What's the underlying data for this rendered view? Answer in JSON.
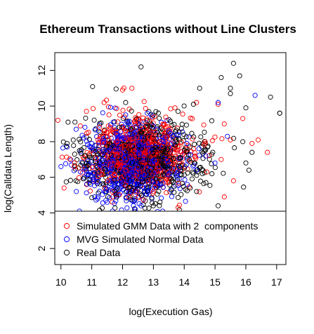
{
  "chart_data": {
    "type": "scatter",
    "title": "Ethereum Transactions without Line Clusters",
    "xlabel": "log(Execution Gas)",
    "ylabel": "log(Calldata Length)",
    "xlim": [
      9.8,
      17.3
    ],
    "ylim": [
      1.1,
      13.0
    ],
    "x_ticks": [
      10,
      11,
      12,
      13,
      14,
      15,
      16,
      17
    ],
    "y_ticks": [
      2,
      4,
      6,
      8,
      10,
      12
    ],
    "grid": false,
    "legend_position": "bottom-left",
    "series": [
      {
        "name": "Simulated GMM Data with 2  components",
        "color": "#ff0000",
        "marker": "open-circle",
        "center": [
          12.5,
          7.2
        ],
        "spread": [
          0.85,
          1.05
        ],
        "count": 700,
        "sample_points": [
          [
            9.9,
            9.2
          ],
          [
            10.1,
            5.4
          ],
          [
            11.4,
            10.2
          ],
          [
            12.0,
            10.9
          ],
          [
            12.3,
            11.0
          ],
          [
            13.7,
            9.9
          ],
          [
            14.4,
            10.2
          ],
          [
            15.1,
            10.1
          ],
          [
            15.3,
            9.0
          ],
          [
            15.5,
            8.1
          ],
          [
            15.9,
            9.3
          ],
          [
            16.2,
            7.9
          ],
          [
            16.4,
            8.1
          ],
          [
            16.7,
            7.4
          ],
          [
            15.2,
            7.0
          ],
          [
            13.0,
            5.2
          ],
          [
            12.2,
            4.9
          ],
          [
            15.3,
            4.9
          ],
          [
            15.6,
            5.8
          ],
          [
            13.8,
            4.3
          ]
        ]
      },
      {
        "name": "MVG Simulated Normal Data",
        "color": "#0000ff",
        "marker": "open-circle",
        "center": [
          12.3,
          6.8
        ],
        "spread": [
          0.75,
          1.05
        ],
        "count": 700,
        "sample_points": [
          [
            10.0,
            6.6
          ],
          [
            10.2,
            7.7
          ],
          [
            10.6,
            4.1
          ],
          [
            11.2,
            4.9
          ],
          [
            11.5,
            4.6
          ],
          [
            12.1,
            9.5
          ],
          [
            12.8,
            9.6
          ],
          [
            13.3,
            4.1
          ],
          [
            14.4,
            6.4
          ],
          [
            14.7,
            7.2
          ],
          [
            15.0,
            6.8
          ],
          [
            15.1,
            10.2
          ],
          [
            16.3,
            10.6
          ],
          [
            15.4,
            8.3
          ],
          [
            11.0,
            7.9
          ],
          [
            13.5,
            8.6
          ],
          [
            10.5,
            5.2
          ],
          [
            12.6,
            4.4
          ],
          [
            14.1,
            5.6
          ],
          [
            11.7,
            9.1
          ]
        ]
      },
      {
        "name": "Real Data",
        "color": "#000000",
        "marker": "open-circle",
        "center": [
          12.7,
          7.0
        ],
        "spread": [
          1.05,
          1.1
        ],
        "count": 700,
        "sample_points": [
          [
            12.6,
            12.2
          ],
          [
            15.2,
            11.6
          ],
          [
            15.6,
            12.4
          ],
          [
            15.5,
            11.0
          ],
          [
            15.8,
            11.7
          ],
          [
            14.5,
            11.0
          ],
          [
            16.8,
            10.5
          ],
          [
            17.1,
            9.6
          ],
          [
            17.1,
            9.6
          ],
          [
            16.0,
            9.9
          ],
          [
            15.5,
            10.7
          ],
          [
            14.3,
            10.1
          ],
          [
            13.8,
            9.7
          ],
          [
            12.1,
            10.2
          ],
          [
            10.2,
            7.9
          ],
          [
            10.6,
            7.5
          ],
          [
            16.0,
            6.8
          ],
          [
            16.1,
            6.4
          ],
          [
            16.2,
            7.4
          ],
          [
            15.9,
            8.0
          ],
          [
            15.1,
            4.4
          ],
          [
            14.4,
            5.2
          ],
          [
            11.8,
            4.9
          ],
          [
            13.0,
            4.4
          ],
          [
            14.9,
            6.2
          ]
        ]
      }
    ]
  }
}
